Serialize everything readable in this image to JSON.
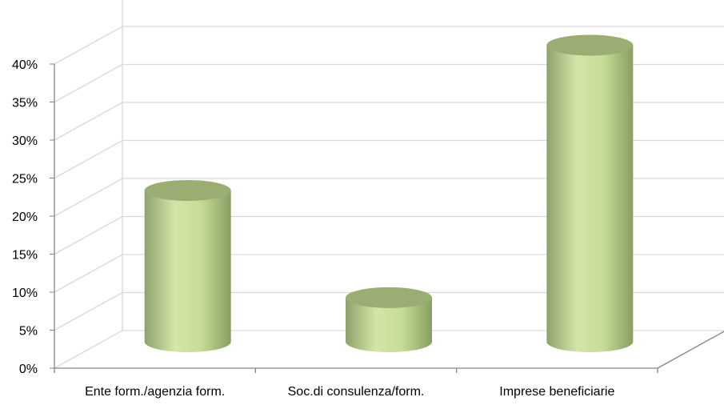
{
  "chart_data": {
    "type": "bar",
    "style": "3d-cylinder",
    "categories": [
      "Ente form./agenzia form.",
      "Soc.di consulenza/form.",
      "Imprese beneficiarie"
    ],
    "values": [
      19.9,
      5.8,
      39.0
    ],
    "yticks": [
      "0%",
      "5%",
      "10%",
      "15%",
      "20%",
      "25%",
      "30%",
      "35%",
      "40%"
    ],
    "ylim": [
      0,
      40
    ],
    "grid": true,
    "title": "",
    "xlabel": "",
    "ylabel": ""
  },
  "colors": {
    "bar_light": "#d3e6a8",
    "bar_dark": "#8aa066",
    "bar_top": "#9bad72",
    "grid": "#d9d9d9",
    "axis": "#868686"
  }
}
